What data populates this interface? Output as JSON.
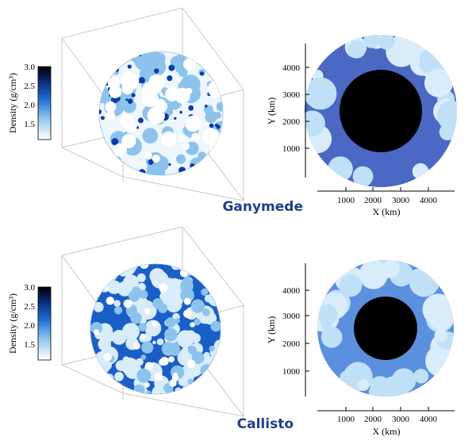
{
  "colors": {
    "dark_blue": "#0b3da8",
    "mid_blue": "#1f6fd0",
    "light_blue": "#8cc3ec",
    "pale_blue": "#d9ecfa",
    "label_blue": "#233e8e",
    "core": "#000000",
    "ganymede_mantle": "#4a68c4",
    "callisto_mantle": "#5b90de"
  },
  "colorbar": {
    "label": "Density (g/cm³)",
    "ticks": [
      "3.0",
      "2.5",
      "2.0",
      "1.5"
    ]
  },
  "panels": [
    {
      "name": "Ganymede",
      "sphere_variant": "sparse",
      "cross_section": {
        "mantle_color_key": "ganymede_mantle",
        "core_radius_km": 1500,
        "x_label": "X (km)",
        "y_label": "Y (km)",
        "x_ticks": [
          "1000",
          "2000",
          "3000",
          "4000"
        ],
        "y_ticks": [
          "1000",
          "2000",
          "3000",
          "4000"
        ]
      }
    },
    {
      "name": "Callisto",
      "sphere_variant": "dense",
      "cross_section": {
        "mantle_color_key": "callisto_mantle",
        "core_radius_km": 1150,
        "x_label": "X (km)",
        "y_label": "Y (km)",
        "x_ticks": [
          "1000",
          "2000",
          "3000",
          "4000"
        ],
        "y_ticks": [
          "1000",
          "2000",
          "3000",
          "4000"
        ]
      }
    }
  ]
}
